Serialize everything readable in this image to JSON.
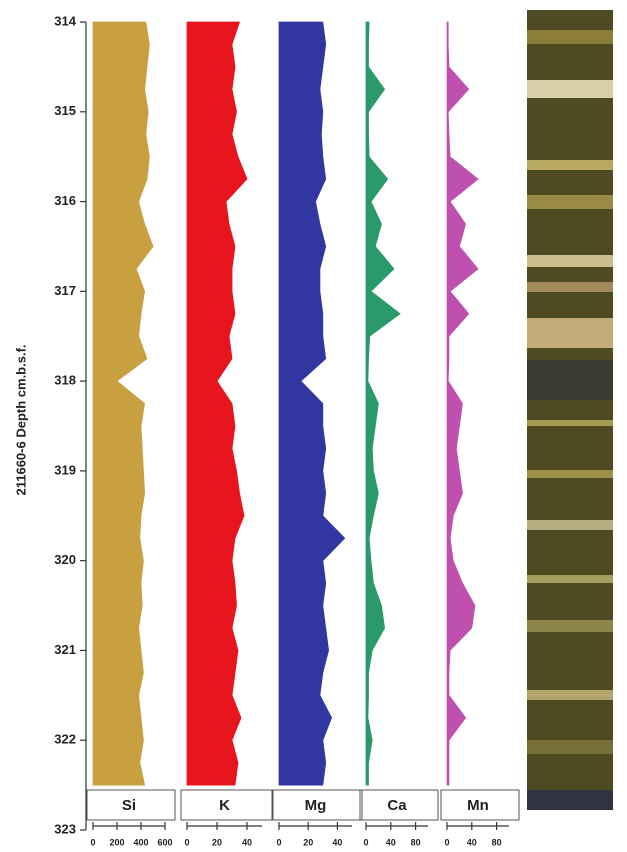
{
  "chart_data": {
    "type": "area",
    "ylabel": "211660-6 Depth cm.b.s.f.",
    "ylim": [
      314,
      323
    ],
    "yticks": [
      314,
      315,
      316,
      317,
      318,
      319,
      320,
      321,
      322,
      323
    ],
    "y": [
      314,
      314.25,
      314.5,
      314.75,
      315,
      315.25,
      315.5,
      315.75,
      316,
      316.25,
      316.5,
      316.75,
      317,
      317.25,
      317.5,
      317.75,
      318,
      318.25,
      318.5,
      318.75,
      319,
      319.25,
      319.5,
      319.75,
      320,
      320.25,
      320.5,
      320.75,
      321,
      321.25,
      321.5,
      321.75,
      322,
      322.25,
      322.5
    ],
    "series": [
      {
        "name": "Si",
        "color": "#c9a040",
        "xlim": [
          0,
          600
        ],
        "xticks": [
          0,
          200,
          400,
          600
        ],
        "values": [
          440,
          470,
          450,
          430,
          460,
          440,
          470,
          450,
          380,
          430,
          500,
          360,
          430,
          400,
          380,
          450,
          200,
          430,
          400,
          410,
          420,
          430,
          400,
          390,
          420,
          400,
          410,
          380,
          400,
          420,
          380,
          400,
          420,
          390,
          430
        ]
      },
      {
        "name": "K",
        "color": "#e8141e",
        "xlim": [
          0,
          50
        ],
        "xticks": [
          0,
          20,
          40
        ],
        "values": [
          35,
          30,
          32,
          30,
          33,
          30,
          34,
          40,
          26,
          28,
          32,
          30,
          30,
          32,
          28,
          30,
          20,
          30,
          32,
          30,
          33,
          35,
          38,
          32,
          30,
          32,
          33,
          30,
          34,
          32,
          30,
          36,
          30,
          34,
          32
        ]
      },
      {
        "name": "Mg",
        "color": "#3236a0",
        "xlim": [
          0,
          50
        ],
        "xticks": [
          0,
          20,
          40
        ],
        "values": [
          30,
          32,
          30,
          28,
          30,
          29,
          30,
          32,
          25,
          28,
          32,
          28,
          28,
          30,
          30,
          32,
          15,
          30,
          30,
          32,
          30,
          32,
          30,
          45,
          30,
          32,
          30,
          32,
          34,
          30,
          28,
          36,
          30,
          32,
          30
        ]
      },
      {
        "name": "Ca",
        "color": "#2a9a6a",
        "xlim": [
          0,
          100
        ],
        "xticks": [
          0,
          40,
          80
        ],
        "values": [
          5,
          4,
          4,
          30,
          4,
          4,
          5,
          35,
          8,
          25,
          15,
          45,
          8,
          55,
          6,
          4,
          3,
          20,
          15,
          10,
          12,
          20,
          12,
          5,
          8,
          12,
          25,
          30,
          10,
          4,
          4,
          3,
          10,
          4,
          4
        ]
      },
      {
        "name": "Mn",
        "color": "#c050b0",
        "xlim": [
          0,
          100
        ],
        "xticks": [
          0,
          40,
          80
        ],
        "values": [
          2,
          2,
          3,
          35,
          2,
          3,
          5,
          50,
          5,
          30,
          20,
          50,
          5,
          35,
          3,
          3,
          2,
          25,
          20,
          15,
          20,
          25,
          10,
          5,
          10,
          25,
          45,
          40,
          5,
          3,
          3,
          30,
          3,
          3,
          3
        ]
      }
    ]
  }
}
